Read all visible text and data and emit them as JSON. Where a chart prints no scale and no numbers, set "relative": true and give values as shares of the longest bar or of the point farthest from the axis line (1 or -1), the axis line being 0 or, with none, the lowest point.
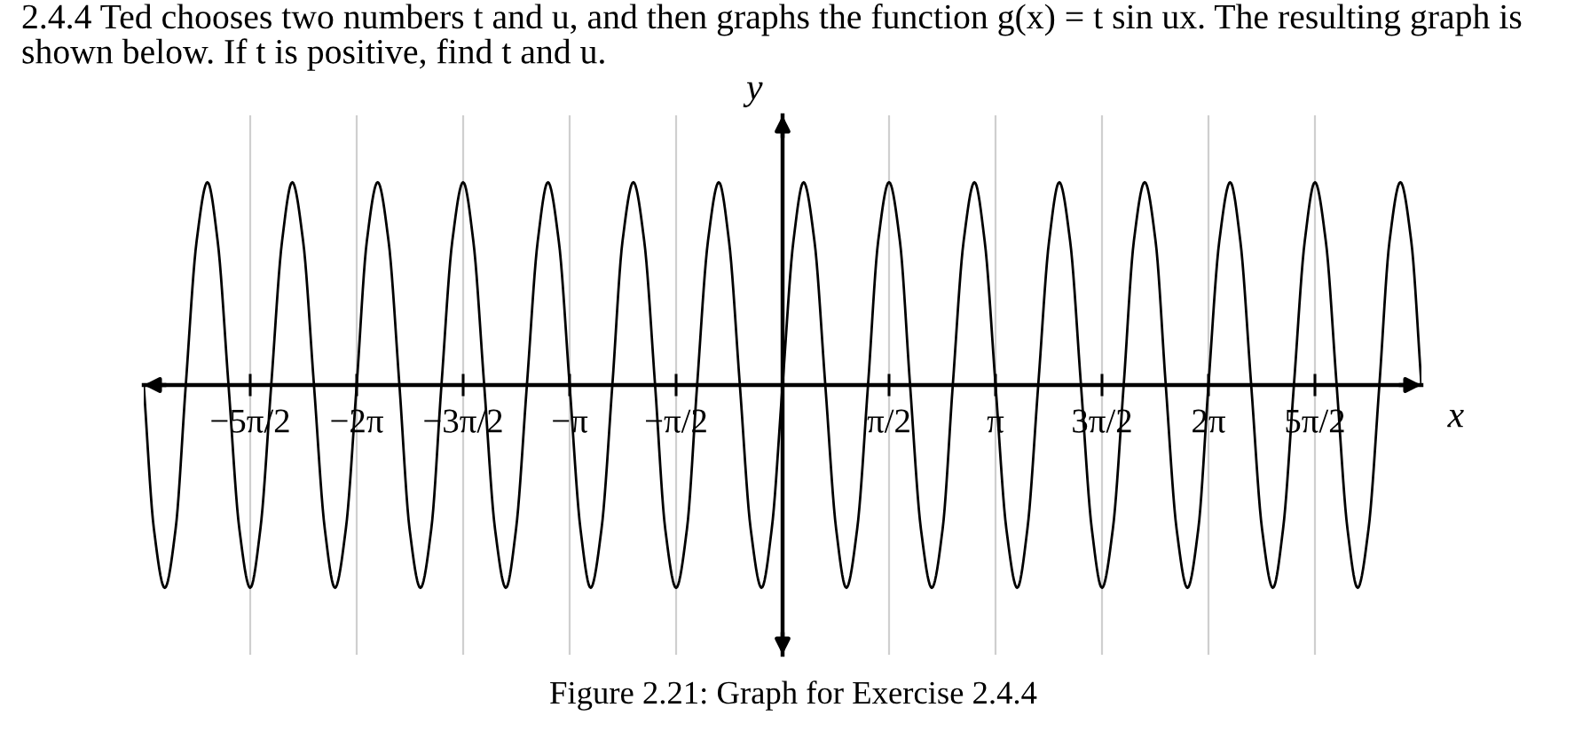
{
  "chart_data": {
    "type": "line",
    "title": "2.4.4 Ted chooses two numbers t and u, and then graphs the function g(x) = t sin ux. The resulting graph is shown below. If t is positive, find t and u.",
    "annotations": [
      "Figure 2.21: Graph for Exercise 2.4.4"
    ],
    "xlabel": "x",
    "ylabel": "y",
    "relative": true,
    "x": [
      -9.42,
      -9.27,
      -9.11,
      -8.95,
      -8.8,
      -8.64,
      -8.48,
      -8.33,
      -8.17,
      -8.01,
      -7.85,
      -7.7,
      -7.54,
      -7.38,
      -7.23,
      -7.07,
      -6.91,
      -6.75,
      -6.6,
      -6.44,
      -6.28,
      -6.13,
      -5.97,
      -5.81,
      -5.65,
      -5.5,
      -5.34,
      -5.18,
      -5.03,
      -4.87,
      -4.71,
      -4.56,
      -4.4,
      -4.24,
      -4.08,
      -3.93,
      -3.77,
      -3.61,
      -3.46,
      -3.3,
      -3.14,
      -2.98,
      -2.83,
      -2.67,
      -2.51,
      -2.36,
      -2.2,
      -2.04,
      -1.88,
      -1.73,
      -1.57,
      -1.41,
      -1.26,
      -1.1,
      -0.94,
      -0.79,
      -0.63,
      -0.47,
      -0.31,
      -0.16,
      0,
      0.16,
      0.31,
      0.47,
      0.63,
      0.79,
      0.94,
      1.1,
      1.26,
      1.41,
      1.57,
      1.73,
      1.88,
      2.04,
      2.2,
      2.36,
      2.51,
      2.67,
      2.83,
      2.98,
      3.14,
      3.3,
      3.46,
      3.61,
      3.77,
      3.93,
      4.08,
      4.24,
      4.4,
      4.56,
      4.71,
      4.87,
      5.03,
      5.18,
      5.34,
      5.5,
      5.65,
      5.81,
      5.97,
      6.13,
      6.28,
      6.44,
      6.6,
      6.75,
      6.91,
      7.07,
      7.23,
      7.38,
      7.54,
      7.7,
      7.85,
      8.01,
      8.17,
      8.33,
      8.48,
      8.64,
      8.8,
      8.95,
      9.11,
      9.27,
      9.42
    ],
    "series": [
      {
        "color": "#000000",
        "values": [
          0,
          -0.71,
          -1,
          -0.71,
          0,
          0.71,
          1,
          0.71,
          0,
          -0.71,
          -1,
          -0.71,
          0,
          0.71,
          1,
          0.71,
          0,
          -0.71,
          -1,
          -0.71,
          0,
          0.71,
          1,
          0.71,
          0,
          -0.71,
          -1,
          -0.71,
          0,
          0.71,
          1,
          0.71,
          0,
          -0.71,
          -1,
          -0.71,
          0,
          0.71,
          1,
          0.71,
          0,
          -0.71,
          -1,
          -0.71,
          0,
          0.71,
          1,
          0.71,
          0,
          -0.71,
          -1,
          -0.71,
          0,
          0.71,
          1,
          0.71,
          0,
          -0.71,
          -1,
          -0.71,
          0,
          0.71,
          1,
          0.71,
          0,
          -0.71,
          -1,
          -0.71,
          0,
          0.71,
          1,
          0.71,
          0,
          -0.71,
          -1,
          -0.71,
          0,
          0.71,
          1,
          0.71,
          0,
          -0.71,
          -1,
          -0.71,
          0,
          0.71,
          1,
          0.71,
          0,
          -0.71,
          -1,
          -0.71,
          0,
          0.71,
          1,
          0.71,
          0,
          -0.71,
          -1,
          -0.71,
          0,
          0.71,
          1,
          0.71,
          0,
          -0.71,
          -1,
          -0.71,
          0,
          0.71,
          1,
          0.71,
          0,
          -0.71,
          -1,
          -0.71,
          0,
          0.71,
          1,
          0.71,
          0
        ]
      }
    ],
    "xlim": [
      -9.42,
      9.42
    ],
    "xticks": [
      {
        "value": -7.85,
        "label": "−5π/2"
      },
      {
        "value": -6.28,
        "label": "−2π"
      },
      {
        "value": -4.71,
        "label": "−3π/2"
      },
      {
        "value": -3.14,
        "label": "−π"
      },
      {
        "value": -1.57,
        "label": "−π/2"
      },
      {
        "value": 1.57,
        "label": "π/2"
      },
      {
        "value": 3.14,
        "label": "π"
      },
      {
        "value": 4.71,
        "label": "3π/2"
      },
      {
        "value": 6.28,
        "label": "2π"
      },
      {
        "value": 7.85,
        "label": "5π/2"
      }
    ],
    "grid": "x"
  }
}
